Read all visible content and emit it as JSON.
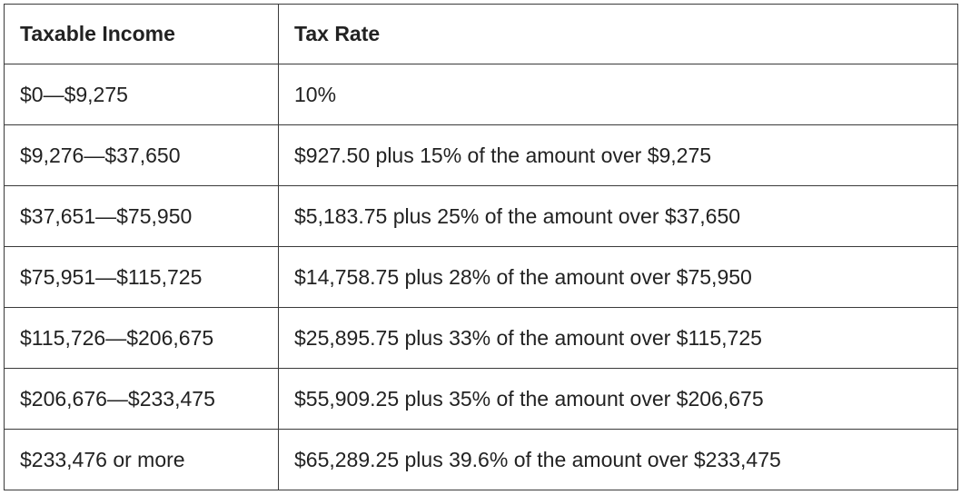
{
  "table": {
    "headers": [
      "Taxable Income",
      "Tax Rate"
    ],
    "rows": [
      [
        "$0—$9,275",
        "10%"
      ],
      [
        "$9,276—$37,650",
        "$927.50 plus 15% of the amount over $9,275"
      ],
      [
        "$37,651—$75,950",
        "$5,183.75 plus 25% of the amount over $37,650"
      ],
      [
        "$75,951—$115,725",
        "$14,758.75 plus 28% of the amount over $75,950"
      ],
      [
        "$115,726—$206,675",
        "$25,895.75 plus 33% of the amount over $115,725"
      ],
      [
        "$206,676—$233,475",
        "$55,909.25 plus 35% of the amount over $206,675"
      ],
      [
        "$233,476 or more",
        "$65,289.25 plus 39.6% of the amount over $233,475"
      ]
    ]
  },
  "colors": {
    "border": "#3a3a3a",
    "text": "#222222",
    "background": "#ffffff"
  }
}
